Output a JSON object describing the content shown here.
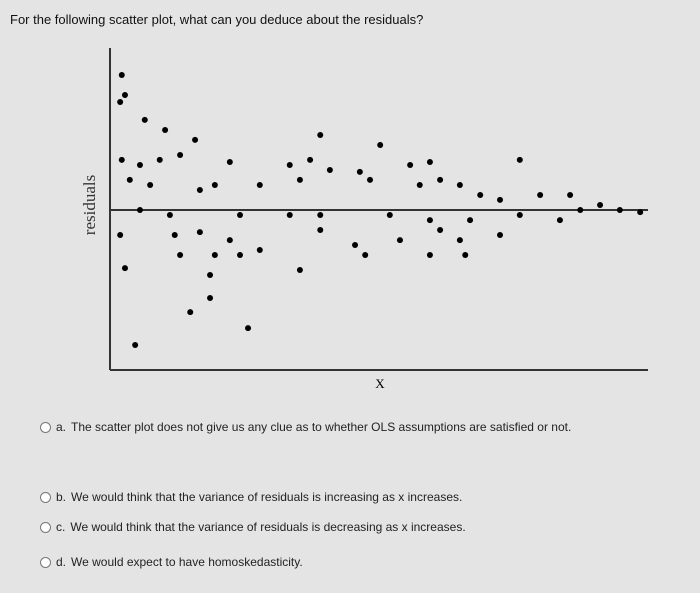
{
  "question": "For the following scatter plot, what can you deduce about the residuals?",
  "chart_data": {
    "type": "scatter",
    "x_label": "X",
    "y_label": "residuals",
    "color": "#000000",
    "xlim": [
      0,
      100
    ],
    "ylim": [
      -100,
      100
    ],
    "x": [
      2.2,
      2.8,
      1.9,
      6.5,
      10.3,
      15.9,
      39.3,
      50.5,
      2.2,
      5.6,
      9.3,
      13.1,
      22.4,
      33.6,
      37.4,
      41.1,
      46.7,
      48.6,
      56.1,
      59.8,
      76.6,
      3.7,
      7.5,
      16.8,
      19.6,
      28.0,
      35.5,
      57.9,
      61.7,
      65.4,
      69.2,
      72.9,
      80.4,
      86.0,
      91.6,
      95.3,
      99.1,
      5.6,
      11.2,
      24.3,
      33.6,
      39.3,
      52.3,
      59.8,
      67.3,
      76.6,
      84.1,
      87.9,
      1.9,
      12.1,
      16.8,
      22.4,
      28.0,
      39.3,
      45.8,
      54.2,
      61.7,
      65.4,
      72.9,
      13.1,
      19.6,
      24.3,
      35.5,
      47.7,
      59.8,
      66.4,
      2.8,
      18.7,
      18.7,
      15.0,
      25.8,
      4.7
    ],
    "y": [
      84.4,
      71.9,
      67.5,
      56.3,
      50,
      43.8,
      46.9,
      40.6,
      31.3,
      28.1,
      31.3,
      34.4,
      30,
      28.1,
      31.3,
      25,
      23.8,
      18.8,
      28.1,
      30,
      31.3,
      18.8,
      15.6,
      12.5,
      15.6,
      15.6,
      18.8,
      15.6,
      18.8,
      15.6,
      9.4,
      6.3,
      9.4,
      9.4,
      3.1,
      0,
      -1.3,
      0,
      -3.1,
      -3.1,
      -3.1,
      -3.1,
      -3.1,
      -6.3,
      -6.3,
      -3.1,
      -6.3,
      0,
      -15.6,
      -15.6,
      -13.8,
      -18.8,
      -25,
      -12.5,
      -21.9,
      -18.8,
      -12.5,
      -18.8,
      -15.6,
      -28.1,
      -28.1,
      -28.1,
      -37.5,
      -28.1,
      -28.1,
      -28.1,
      -36.3,
      -40.6,
      -55,
      -63.8,
      -73.8,
      -84.4
    ]
  },
  "options": [
    {
      "letter": "a.",
      "text": "The scatter plot does not give us any clue as to whether OLS assumptions are satisfied or not."
    },
    {
      "letter": "b.",
      "text": "We would think that the variance of residuals is increasing as x increases."
    },
    {
      "letter": "c.",
      "text": "We would think that the variance of residuals is decreasing as x increases."
    },
    {
      "letter": "d.",
      "text": "We would expect to have homoskedasticity."
    }
  ]
}
